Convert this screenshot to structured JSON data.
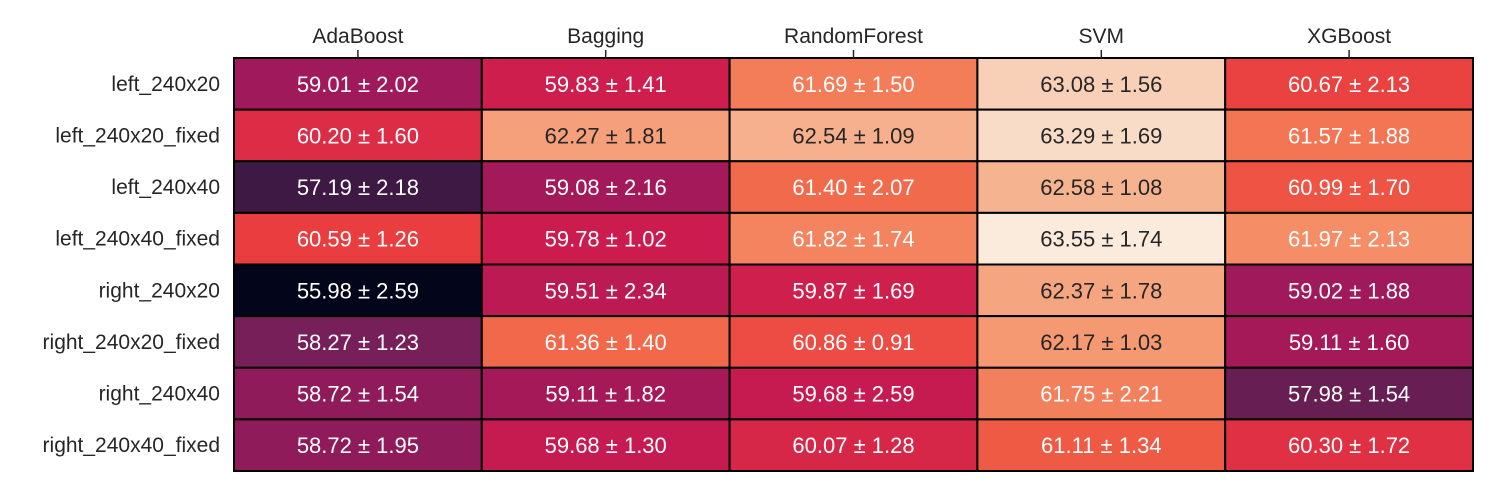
{
  "chart_data": {
    "type": "heatmap",
    "x_tick_position": "top",
    "colormap": "rocket",
    "colorbar": false,
    "columns": [
      "AdaBoost",
      "Bagging",
      "RandomForest",
      "SVM",
      "XGBoost"
    ],
    "rows": [
      "left_240x20",
      "left_240x20_fixed",
      "left_240x40",
      "left_240x40_fixed",
      "right_240x20",
      "right_240x20_fixed",
      "right_240x40",
      "right_240x40_fixed"
    ],
    "values": [
      [
        59.01,
        59.83,
        61.69,
        63.08,
        60.67
      ],
      [
        60.2,
        62.27,
        62.54,
        63.29,
        61.57
      ],
      [
        57.19,
        59.08,
        61.4,
        62.58,
        60.99
      ],
      [
        60.59,
        59.78,
        61.82,
        63.55,
        61.97
      ],
      [
        55.98,
        59.51,
        59.87,
        62.37,
        59.02
      ],
      [
        58.27,
        61.36,
        60.86,
        62.17,
        59.11
      ],
      [
        58.72,
        59.11,
        59.68,
        61.75,
        57.98
      ],
      [
        58.72,
        59.68,
        60.07,
        61.11,
        60.3
      ]
    ],
    "annotations": [
      [
        "59.01 ± 2.02",
        "59.83 ± 1.41",
        "61.69 ± 1.50",
        "63.08 ± 1.56",
        "60.67 ± 2.13"
      ],
      [
        "60.20 ± 1.60",
        "62.27 ± 1.81",
        "62.54 ± 1.09",
        "63.29 ± 1.69",
        "61.57 ± 1.88"
      ],
      [
        "57.19 ± 2.18",
        "59.08 ± 2.16",
        "61.40 ± 2.07",
        "62.58 ± 1.08",
        "60.99 ± 1.70"
      ],
      [
        "60.59 ± 1.26",
        "59.78 ± 1.02",
        "61.82 ± 1.74",
        "63.55 ± 1.74",
        "61.97 ± 2.13"
      ],
      [
        "55.98 ± 2.59",
        "59.51 ± 2.34",
        "59.87 ± 1.69",
        "62.37 ± 1.78",
        "59.02 ± 1.88"
      ],
      [
        "58.27 ± 1.23",
        "61.36 ± 1.40",
        "60.86 ± 0.91",
        "62.17 ± 1.03",
        "59.11 ± 1.60"
      ],
      [
        "58.72 ± 1.54",
        "59.11 ± 1.82",
        "59.68 ± 2.59",
        "61.75 ± 2.21",
        "57.98 ± 1.54"
      ],
      [
        "58.72 ± 1.95",
        "59.68 ± 1.30",
        "60.07 ± 1.28",
        "61.11 ± 1.34",
        "60.30 ± 1.72"
      ]
    ],
    "vmin": 55.98,
    "vmax": 63.55
  }
}
